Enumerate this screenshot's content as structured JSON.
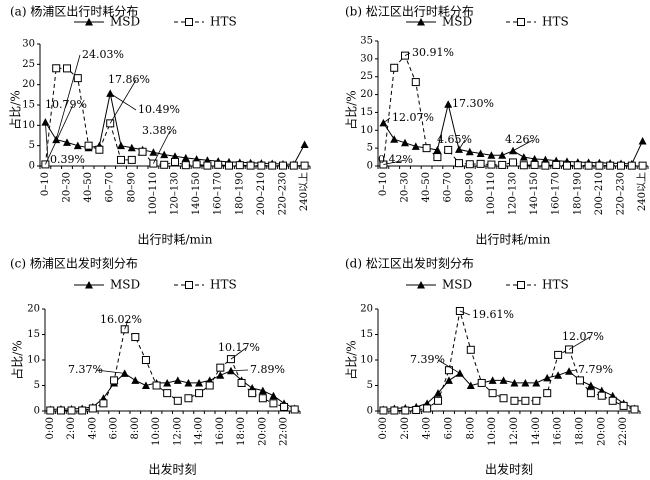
{
  "figure": {
    "legend_labels": [
      "MSD",
      "HTS"
    ]
  },
  "chart_data": [
    {
      "type": "line",
      "panel": "a",
      "title": "(a) 杨浦区出行时耗分布",
      "xlabel": "出行时耗/min",
      "ylabel": "占比/%",
      "ylim": [
        0,
        30
      ],
      "yticks": [
        0,
        5,
        10,
        15,
        20,
        25,
        30
      ],
      "grid": false,
      "legend_position": "top",
      "categories": [
        "0–10",
        "10–20",
        "20–30",
        "30–40",
        "40–50",
        "50–60",
        "60–70",
        "70–80",
        "80–90",
        "90–100",
        "100–110",
        "110–120",
        "120–130",
        "130–140",
        "140–150",
        "150–160",
        "160–170",
        "170–180",
        "180–190",
        "190–200",
        "200–210",
        "210–220",
        "220–230",
        "230–240",
        "240以上"
      ],
      "tick_labels": [
        "0–10",
        "20–30",
        "40–50",
        "60–70",
        "80–90",
        "100–110",
        "120–130",
        "140–150",
        "160–170",
        "180–190",
        "200–210",
        "220–230",
        "240以上"
      ],
      "series": [
        {
          "name": "MSD",
          "marker": "triangle",
          "dash": "solid",
          "values": [
            10.79,
            6.5,
            5.8,
            5.0,
            4.5,
            5.0,
            17.86,
            5.0,
            4.5,
            4.0,
            3.38,
            2.8,
            2.4,
            2.0,
            1.7,
            1.4,
            1.2,
            1.0,
            0.9,
            0.8,
            0.7,
            0.6,
            0.5,
            0.4,
            5.3
          ]
        },
        {
          "name": "HTS",
          "marker": "square",
          "dash": "dashed",
          "values": [
            0.39,
            24.03,
            24.0,
            21.6,
            5.0,
            4.0,
            10.49,
            1.5,
            1.5,
            3.5,
            0.6,
            0.3,
            1.0,
            0.2,
            0.4,
            0.1,
            0.3,
            0.1,
            0.2,
            0.1,
            0.1,
            0.1,
            0.1,
            0.1,
            0.1
          ]
        }
      ],
      "annotations": [
        "24.03%",
        "17.86%",
        "10.79%",
        "10.49%",
        "3.38%",
        "0.39%"
      ]
    },
    {
      "type": "line",
      "panel": "b",
      "title": "(b) 松江区出行时耗分布",
      "xlabel": "出行时耗/min",
      "ylabel": "占比/%",
      "ylim": [
        0,
        35
      ],
      "yticks": [
        0,
        5,
        10,
        15,
        20,
        25,
        30,
        35
      ],
      "grid": false,
      "legend_position": "top",
      "categories": [
        "0–10",
        "10–20",
        "20–30",
        "30–40",
        "40–50",
        "50–60",
        "60–70",
        "70–80",
        "80–90",
        "90–100",
        "100–110",
        "110–120",
        "120–130",
        "130–140",
        "140–150",
        "150–160",
        "160–170",
        "170–180",
        "180–190",
        "190–200",
        "200–210",
        "210–220",
        "220–230",
        "230–240",
        "240以上"
      ],
      "tick_labels": [
        "0–10",
        "20–30",
        "40–50",
        "60–70",
        "80–90",
        "100–110",
        "120–130",
        "140–150",
        "160–170",
        "180–190",
        "200–210",
        "220–230",
        "240以上"
      ],
      "series": [
        {
          "name": "MSD",
          "marker": "triangle",
          "dash": "solid",
          "values": [
            12.07,
            7.5,
            6.5,
            5.5,
            5.0,
            4.5,
            17.3,
            4.65,
            4.0,
            3.5,
            3.0,
            3.0,
            4.26,
            2.5,
            2.0,
            1.8,
            1.5,
            1.3,
            1.1,
            1.0,
            0.9,
            0.8,
            0.7,
            0.6,
            7.0
          ]
        },
        {
          "name": "HTS",
          "marker": "square",
          "dash": "dashed",
          "values": [
            0.42,
            27.5,
            30.91,
            23.5,
            5.0,
            2.5,
            4.5,
            0.8,
            0.5,
            0.6,
            0.4,
            0.3,
            1.0,
            0.2,
            0.3,
            0.1,
            0.3,
            0.1,
            0.2,
            0.1,
            0.1,
            0.1,
            0.1,
            0.1,
            0.1
          ]
        }
      ],
      "annotations": [
        "30.91%",
        "12.07%",
        "17.30%",
        "4.65%",
        "4.26%",
        "0.42%"
      ]
    },
    {
      "type": "line",
      "panel": "c",
      "title": "(c) 杨浦区出发时刻分布",
      "xlabel": "出发时刻",
      "ylabel": "占比/%",
      "ylim": [
        0,
        20
      ],
      "yticks": [
        0,
        5,
        10,
        15,
        20
      ],
      "grid": false,
      "legend_position": "top",
      "categories": [
        "0:00",
        "1:00",
        "2:00",
        "3:00",
        "4:00",
        "5:00",
        "6:00",
        "7:00",
        "8:00",
        "9:00",
        "10:00",
        "11:00",
        "12:00",
        "13:00",
        "14:00",
        "15:00",
        "16:00",
        "17:00",
        "18:00",
        "19:00",
        "20:00",
        "21:00",
        "22:00",
        "23:00"
      ],
      "tick_labels": [
        "0:00",
        "2:00",
        "4:00",
        "6:00",
        "8:00",
        "10:00",
        "12:00",
        "14:00",
        "16:00",
        "18:00",
        "20:00",
        "22:00"
      ],
      "series": [
        {
          "name": "MSD",
          "marker": "triangle",
          "dash": "solid",
          "values": [
            0.3,
            0.4,
            0.4,
            0.5,
            0.8,
            2.5,
            5.5,
            7.37,
            6.0,
            5.0,
            5.5,
            5.5,
            6.0,
            5.5,
            5.5,
            6.0,
            7.0,
            7.89,
            6.0,
            4.5,
            4.0,
            3.0,
            1.5,
            0.5
          ]
        },
        {
          "name": "HTS",
          "marker": "square",
          "dash": "dashed",
          "values": [
            0.1,
            0.1,
            0.1,
            0.1,
            0.5,
            1.5,
            6.0,
            16.02,
            14.5,
            10.0,
            5.0,
            3.5,
            2.0,
            2.5,
            3.5,
            5.0,
            8.5,
            10.17,
            5.5,
            3.5,
            2.5,
            1.5,
            0.8,
            0.3
          ]
        }
      ],
      "annotations": [
        "16.02%",
        "10.17%",
        "7.37%",
        "7.89%"
      ]
    },
    {
      "type": "line",
      "panel": "d",
      "title": "(d) 松江区出发时刻分布",
      "xlabel": "出发时刻",
      "ylabel": "占比/%",
      "ylim": [
        0,
        20
      ],
      "yticks": [
        0,
        5,
        10,
        15,
        20
      ],
      "grid": false,
      "legend_position": "top",
      "categories": [
        "0:00",
        "1:00",
        "2:00",
        "3:00",
        "4:00",
        "5:00",
        "6:00",
        "7:00",
        "8:00",
        "9:00",
        "10:00",
        "11:00",
        "12:00",
        "13:00",
        "14:00",
        "15:00",
        "16:00",
        "17:00",
        "18:00",
        "19:00",
        "20:00",
        "21:00",
        "22:00",
        "23:00"
      ],
      "tick_labels": [
        "0:00",
        "2:00",
        "4:00",
        "6:00",
        "8:00",
        "10:00",
        "12:00",
        "14:00",
        "16:00",
        "18:00",
        "20:00",
        "22:00"
      ],
      "series": [
        {
          "name": "MSD",
          "marker": "triangle",
          "dash": "solid",
          "values": [
            0.3,
            0.5,
            0.6,
            0.8,
            1.5,
            3.5,
            6.0,
            7.39,
            5.0,
            5.5,
            6.0,
            6.0,
            5.5,
            5.5,
            5.5,
            6.5,
            7.0,
            7.79,
            6.0,
            5.0,
            4.0,
            3.0,
            1.5,
            0.5
          ]
        },
        {
          "name": "HTS",
          "marker": "square",
          "dash": "dashed",
          "values": [
            0.1,
            0.1,
            0.1,
            0.2,
            0.5,
            2.0,
            8.0,
            19.61,
            12.0,
            5.5,
            3.5,
            2.5,
            2.0,
            2.0,
            2.0,
            3.5,
            11.0,
            12.07,
            6.0,
            3.5,
            3.0,
            2.0,
            1.0,
            0.3
          ]
        }
      ],
      "annotations": [
        "19.61%",
        "12.07%",
        "7.39%",
        "7.79%"
      ]
    }
  ]
}
